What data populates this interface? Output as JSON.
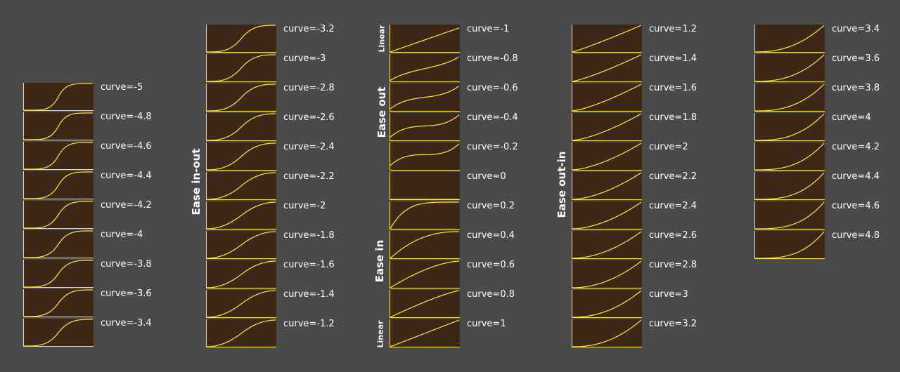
{
  "curve_color": "#ffee22",
  "panel_color": "#3d2817",
  "background_color": "#4a4a4a",
  "label_color": "#ffffff",
  "columns": [
    {
      "labels": [
        "curve=-5",
        "curve=-4.8",
        "curve=-4.6",
        "curve=-4.4",
        "curve=-4.2",
        "curve=-4",
        "curve=-3.8",
        "curve=-3.6",
        "curve=-3.4"
      ],
      "curves": [
        -5,
        -4.8,
        -4.6,
        -4.4,
        -4.2,
        -4,
        -3.8,
        -3.6,
        -3.4
      ],
      "group_labels": []
    },
    {
      "labels": [
        "curve=-3.2",
        "curve=-3",
        "curve=-2.8",
        "curve=-2.6",
        "curve=-2.4",
        "curve=-2.2",
        "curve=-2",
        "curve=-1.8",
        "curve=-1.6",
        "curve=-1.4",
        "curve=-1.2"
      ],
      "curves": [
        -3.2,
        -3,
        -2.8,
        -2.6,
        -2.4,
        -2.2,
        -2,
        -1.8,
        -1.6,
        -1.4,
        -1.2
      ],
      "group_labels": [
        "Ease in-out"
      ]
    },
    {
      "labels": [
        "curve=-1",
        "curve=-0.8",
        "curve=-0.6",
        "curve=-0.4",
        "curve=-0.2",
        "curve=0",
        "curve=0.2",
        "curve=0.4",
        "curve=0.6",
        "curve=0.8",
        "curve=1"
      ],
      "curves": [
        -1,
        -0.8,
        -0.6,
        -0.4,
        -0.2,
        0,
        0.2,
        0.4,
        0.6,
        0.8,
        1
      ],
      "group_labels": [
        "Linear",
        "Ease out",
        "Ease in",
        "Linear"
      ]
    },
    {
      "labels": [
        "curve=1.2",
        "curve=1.4",
        "curve=1.6",
        "curve=1.8",
        "curve=2",
        "curve=2.2",
        "curve=2.4",
        "curve=2.6",
        "curve=2.8",
        "curve=3",
        "curve=3.2"
      ],
      "curves": [
        1.2,
        1.4,
        1.6,
        1.8,
        2,
        2.2,
        2.4,
        2.6,
        2.8,
        3,
        3.2
      ],
      "group_labels": [
        "Ease out-in"
      ]
    },
    {
      "labels": [
        "curve=3.4",
        "curve=3.6",
        "curve=3.8",
        "curve=4",
        "curve=4.2",
        "curve=4.4",
        "curve=4.6",
        "curve=4.8"
      ],
      "curves": [
        3.4,
        3.6,
        3.8,
        4,
        4.2,
        4.4,
        4.6,
        4.8
      ],
      "group_labels": []
    }
  ]
}
